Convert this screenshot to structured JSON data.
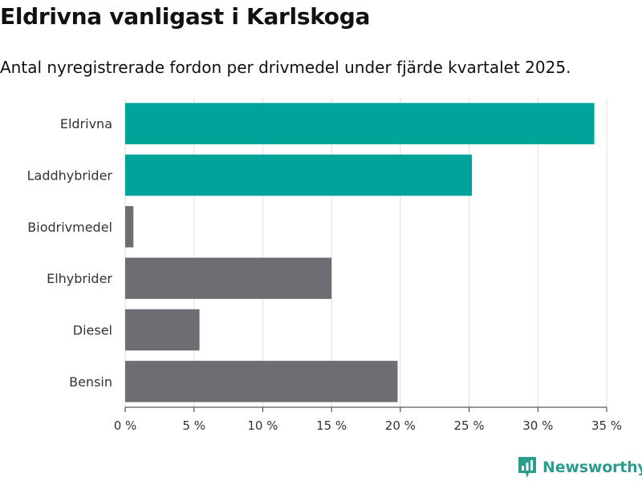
{
  "title": "Eldrivna vanligast i Karlskoga",
  "subtitle": "Antal nyregistrerade fordon per drivmedel under fjärde kvartalet 2025.",
  "brand": "Newsworthy",
  "colors": {
    "highlight": "#00a39a",
    "default": "#6e6d73",
    "grid": "#dddddd",
    "brand": "#2a9d8f"
  },
  "chart_data": {
    "type": "bar",
    "orientation": "horizontal",
    "categories": [
      "Eldrivna",
      "Laddhybrider",
      "Biodrivmedel",
      "Elhybrider",
      "Diesel",
      "Bensin"
    ],
    "values": [
      34.1,
      25.2,
      0.6,
      15.0,
      5.4,
      19.8
    ],
    "highlighted": [
      true,
      true,
      false,
      false,
      false,
      false
    ],
    "xlim": [
      0,
      35
    ],
    "xticks": [
      0,
      5,
      10,
      15,
      20,
      25,
      30,
      35
    ],
    "xtick_labels": [
      "0 %",
      "5 %",
      "10 %",
      "15 %",
      "20 %",
      "25 %",
      "30 %",
      "35 %"
    ],
    "grid": true
  }
}
